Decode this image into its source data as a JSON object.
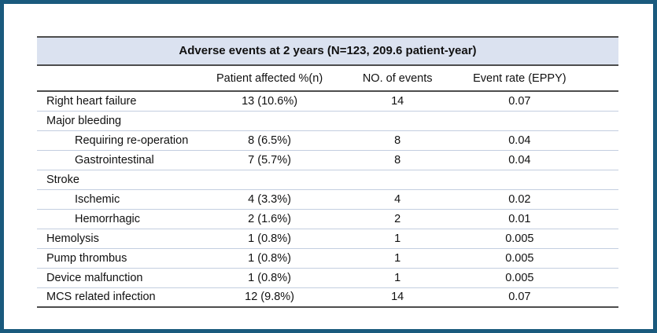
{
  "colors": {
    "frame": "#1a5a7d",
    "title-bg": "#dbe2f0",
    "line-dark": "#4d4d4d",
    "line-thin": "#c3cee0",
    "text": "#111111",
    "background": "#ffffff"
  },
  "table": {
    "title": "Adverse events at 2 years (N=123, 209.6 patient-year)",
    "columns": {
      "label": "",
      "patient_affected": "Patient affected %(n)",
      "events": "NO. of events",
      "event_rate": "Event rate (EPPY)"
    },
    "rows": [
      {
        "label": "Right heart failure",
        "patient_affected": "13 (10.6%)",
        "events": "14",
        "event_rate": "0.07"
      },
      {
        "label": "Major bleeding",
        "patient_affected": "",
        "events": "",
        "event_rate": ""
      },
      {
        "label": "Requiring re-operation",
        "patient_affected": "8 (6.5%)",
        "events": "8",
        "event_rate": "0.04"
      },
      {
        "label": "Gastrointestinal",
        "patient_affected": "7 (5.7%)",
        "events": "8",
        "event_rate": "0.04"
      },
      {
        "label": "Stroke",
        "patient_affected": "",
        "events": "",
        "event_rate": ""
      },
      {
        "label": "Ischemic",
        "patient_affected": "4 (3.3%)",
        "events": "4",
        "event_rate": "0.02"
      },
      {
        "label": "Hemorrhagic",
        "patient_affected": "2 (1.6%)",
        "events": "2",
        "event_rate": "0.01"
      },
      {
        "label": "Hemolysis",
        "patient_affected": "1 (0.8%)",
        "events": "1",
        "event_rate": "0.005"
      },
      {
        "label": "Pump thrombus",
        "patient_affected": "1 (0.8%)",
        "events": "1",
        "event_rate": "0.005"
      },
      {
        "label": "Device malfunction",
        "patient_affected": "1 (0.8%)",
        "events": "1",
        "event_rate": "0.005"
      },
      {
        "label": "MCS related infection",
        "patient_affected": "12 (9.8%)",
        "events": "14",
        "event_rate": "0.07"
      }
    ]
  }
}
